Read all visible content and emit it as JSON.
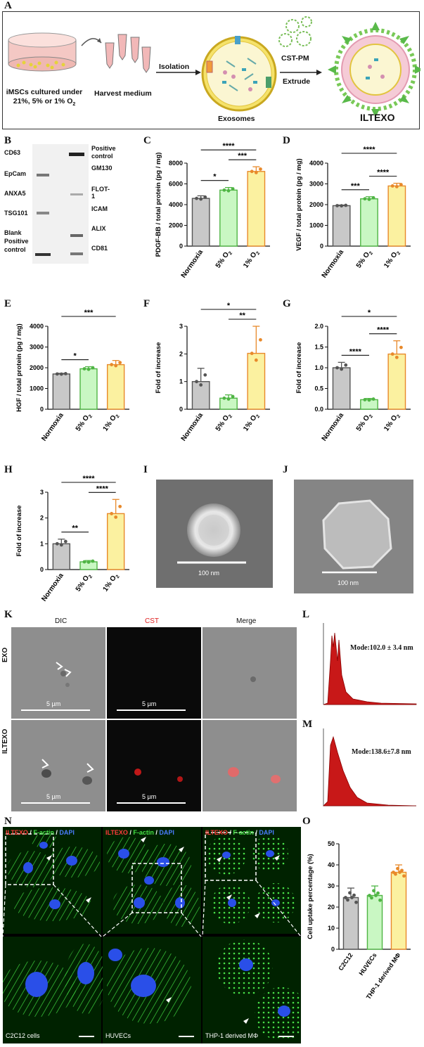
{
  "panel_letters": {
    "A": "A",
    "B": "B",
    "C": "C",
    "D": "D",
    "E": "E",
    "F": "F",
    "G": "G",
    "H": "H",
    "I": "I",
    "J": "J",
    "K": "K",
    "L": "L",
    "M": "M",
    "N": "N",
    "O": "O"
  },
  "panelA": {
    "dish_caption_line1": "iMSCs cultured under",
    "dish_caption_line2": "21%, 5% or 1% O",
    "dish_caption_sub": "2",
    "harvest": "Harvest medium",
    "isolation": "Isolation",
    "exosomes": "Exosomes",
    "cst_pm": "CST-PM",
    "extrude": "Extrude",
    "product": "ILTEXO"
  },
  "panelB": {
    "left_labels": [
      "CD63",
      "EpCam",
      "ANXA5",
      "TSG101",
      "Blank",
      "Positive",
      "control"
    ],
    "right_labels": [
      "Positive",
      "control",
      "GM130",
      "FLOT-1",
      "ICAM",
      "ALIX",
      "CD81"
    ]
  },
  "micro_I": {
    "scale": "100 nm"
  },
  "micro_J": {
    "scale": "100 nm"
  },
  "panelK": {
    "col_dic": "DIC",
    "col_cst": "CST",
    "col_merge": "Merge",
    "row_exo": "EXO",
    "row_iltexo": "ILTEXO",
    "scale": "5 µm"
  },
  "panelL": {
    "mode": "Mode:102.0 ± 3.4 nm"
  },
  "panelM": {
    "mode": "Mode:138.6±7.8 nm"
  },
  "panelN": {
    "header_red": "ILTEXO",
    "header_sep1": " / ",
    "header_green": "F-actin",
    "header_sep2": " / ",
    "header_blue": "DAPI",
    "cells": [
      "C2C12 cells",
      "HUVECs",
      "THP-1 derived MΦ"
    ]
  },
  "colors": {
    "gray": "#c8c8c8",
    "green": "#c9f7c3",
    "yellow": "#fbf1a0",
    "orange": "#e8892a",
    "green_edge": "#4fb544",
    "gray_edge": "#555555"
  },
  "chart_data": [
    {
      "id": "C",
      "type": "bar",
      "categories": [
        "Normoxia",
        "5% O2",
        "1% O2"
      ],
      "values": [
        4600,
        5400,
        7200
      ],
      "errors": [
        250,
        250,
        450
      ],
      "ylabel": "PDGF-BB / total protein (pg / mg)",
      "ylim": [
        0,
        8000
      ],
      "yticks": [
        "0",
        "2000",
        "4000",
        "6000",
        "8000"
      ],
      "significance": [
        {
          "from": 0,
          "to": 1,
          "label": "*"
        },
        {
          "from": 1,
          "to": 2,
          "label": "***"
        },
        {
          "from": 0,
          "to": 2,
          "label": "****"
        }
      ]
    },
    {
      "id": "D",
      "type": "bar",
      "categories": [
        "Normoxia",
        "5% O2",
        "1% O2"
      ],
      "values": [
        1950,
        2280,
        2900
      ],
      "errors": [
        30,
        100,
        130
      ],
      "ylabel": "VEGF / total protein (pg / mg)",
      "ylim": [
        0,
        4000
      ],
      "yticks": [
        "0",
        "1000",
        "2000",
        "3000",
        "4000"
      ],
      "significance": [
        {
          "from": 0,
          "to": 1,
          "label": "***"
        },
        {
          "from": 1,
          "to": 2,
          "label": "****"
        },
        {
          "from": 0,
          "to": 2,
          "label": "****"
        }
      ]
    },
    {
      "id": "E",
      "type": "bar",
      "categories": [
        "Normoxia",
        "5% O2",
        "1% O2"
      ],
      "values": [
        1700,
        1950,
        2150
      ],
      "errors": [
        30,
        100,
        200
      ],
      "ylabel": "HGF / total protein (pg / mg)",
      "ylim": [
        0,
        4000
      ],
      "yticks": [
        "0",
        "1000",
        "2000",
        "3000",
        "4000"
      ],
      "significance": [
        {
          "from": 0,
          "to": 1,
          "label": "*"
        },
        {
          "from": 0,
          "to": 2,
          "label": "***"
        }
      ]
    },
    {
      "id": "F",
      "type": "bar",
      "categories": [
        "Normoxia",
        "5% O2",
        "1% O2"
      ],
      "values": [
        1.0,
        0.4,
        2.02
      ],
      "errors": [
        0.48,
        0.12,
        0.98
      ],
      "ylabel": "Fold of increase",
      "ylim": [
        0,
        3
      ],
      "yticks": [
        "0",
        "1",
        "2",
        "3"
      ],
      "significance": [
        {
          "from": 1,
          "to": 2,
          "label": "**"
        },
        {
          "from": 0,
          "to": 2,
          "label": "*"
        }
      ]
    },
    {
      "id": "G",
      "type": "bar",
      "categories": [
        "Normoxia",
        "5% O2",
        "1% O2"
      ],
      "values": [
        1.0,
        0.23,
        1.33
      ],
      "errors": [
        0.13,
        0.03,
        0.32
      ],
      "ylabel": "Fold of increase",
      "ylim": [
        0,
        2.0
      ],
      "yticks": [
        "0.0",
        "0.5",
        "1.0",
        "1.5",
        "2.0"
      ],
      "significance": [
        {
          "from": 0,
          "to": 1,
          "label": "****"
        },
        {
          "from": 1,
          "to": 2,
          "label": "****"
        },
        {
          "from": 0,
          "to": 2,
          "label": "*"
        }
      ]
    },
    {
      "id": "H",
      "type": "bar",
      "categories": [
        "Normoxia",
        "5% O2",
        "1% O2"
      ],
      "values": [
        1.0,
        0.3,
        2.17
      ],
      "errors": [
        0.18,
        0.05,
        0.55
      ],
      "ylabel": "Fold of increase",
      "ylim": [
        0,
        3
      ],
      "yticks": [
        "0",
        "1",
        "2",
        "3"
      ],
      "significance": [
        {
          "from": 0,
          "to": 1,
          "label": "**"
        },
        {
          "from": 1,
          "to": 2,
          "label": "****"
        },
        {
          "from": 0,
          "to": 2,
          "label": "****"
        }
      ]
    },
    {
      "id": "O",
      "type": "bar",
      "categories": [
        "C2C12",
        "HUVECs",
        "THP-1 derived MΦ"
      ],
      "values": [
        24.5,
        25.5,
        36.5
      ],
      "errors": [
        4.5,
        4.5,
        3.5
      ],
      "ylabel": "Cell uptake percentage (%)",
      "ylim": [
        0,
        50
      ],
      "yticks": [
        "0",
        "10",
        "20",
        "30",
        "40",
        "50"
      ],
      "significance": []
    }
  ]
}
